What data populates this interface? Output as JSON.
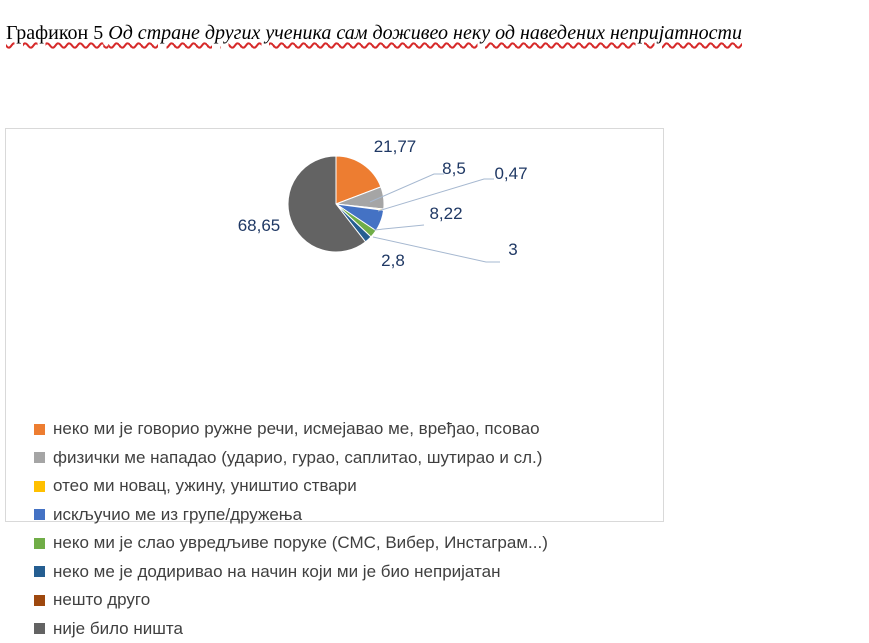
{
  "caption": {
    "label": "Графикон 5",
    "title": "Од стране других ученика сам доживео неку од наведених непријатности"
  },
  "chart_data": {
    "type": "pie",
    "categories": [
      "неко ми је говорио  ружне речи, исмејавао  ме, вређао, псовао",
      "физички ме нападао (ударио, гурао, саплитао, шутирао и сл.)",
      "отео ми новац, ужину, уништио ствари",
      "искључио ме из групе/дружења",
      "неко ми је слао увредљиве поруке (СМС, Вибер, Инстаграм...)",
      "неко ме је додиривао на начин који ми је био непријатан",
      "нешто друго",
      "није било ништа"
    ],
    "values": [
      21.77,
      8.5,
      0.47,
      8.22,
      3,
      2.8,
      0,
      68.65
    ],
    "data_labels": [
      "21,77",
      "8,5",
      "0,47",
      "8,22",
      "3",
      "2,8",
      "",
      "68,65"
    ],
    "colors": [
      "#ED7D31",
      "#A5A5A5",
      "#FFC000",
      "#4472C4",
      "#70AD47",
      "#255E91",
      "#9E480E",
      "#636363"
    ],
    "legend_position": "bottom"
  }
}
